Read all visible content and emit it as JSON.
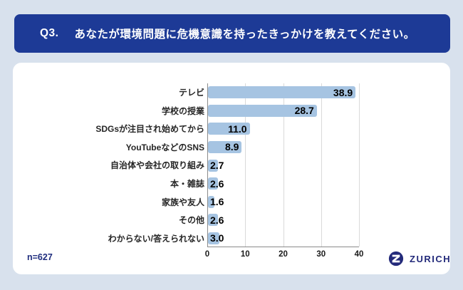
{
  "header": {
    "question_no": "Q3.",
    "title": "あなたが環境問題に危機意識を持ったきっかけを教えてください。"
  },
  "chart_data": {
    "type": "bar",
    "orientation": "horizontal",
    "title": "",
    "categories": [
      "テレビ",
      "学校の授業",
      "SDGsが注目され始めてから",
      "YouTubeなどのSNS",
      "自治体や会社の取り組み",
      "本・雑誌",
      "家族や友人",
      "その他",
      "わからない/答えられない"
    ],
    "values": [
      38.9,
      28.7,
      11.0,
      8.9,
      2.7,
      2.6,
      1.6,
      2.6,
      3.0
    ],
    "value_labels": [
      "38.9",
      "28.7",
      "11.0",
      "8.9",
      "2.7",
      "2.6",
      "1.6",
      "2.6",
      "3.0"
    ],
    "xlim": [
      0,
      40
    ],
    "x_ticks": [
      0,
      10,
      20,
      30,
      40
    ],
    "grid": true,
    "legend": false,
    "bar_color": "#a6c4e2"
  },
  "footer": {
    "sample_size": "n=627",
    "brand": "ZURICH"
  },
  "colors": {
    "page_background": "#d8e1ed",
    "header_background": "#1d3a96",
    "card_background": "#ffffff",
    "bar_fill": "#a6c4e2",
    "gridline": "#dadada",
    "axis_line": "#8a8a8a",
    "navy_text": "#1f2d7e"
  }
}
